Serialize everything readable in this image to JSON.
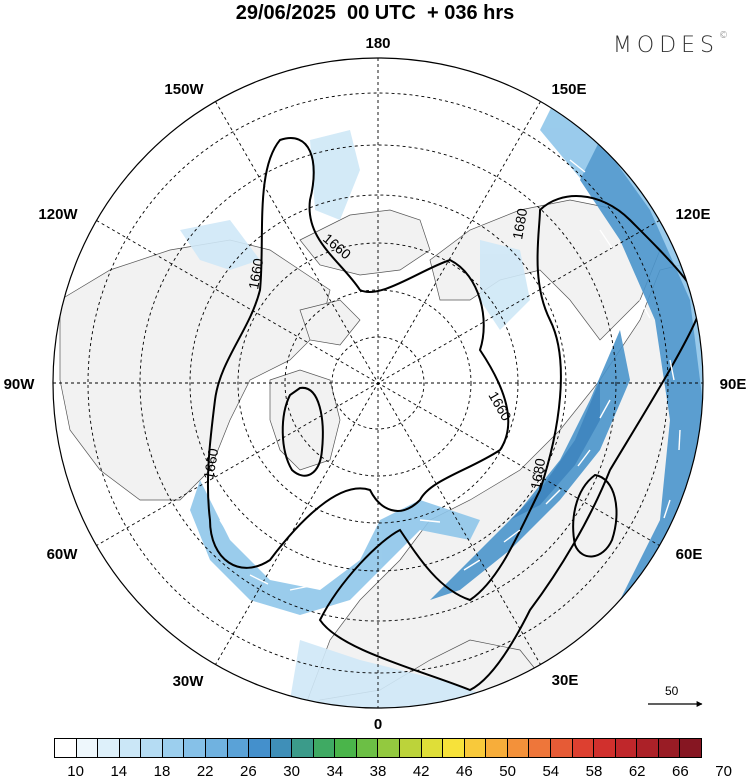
{
  "header": {
    "title": "29/06/2025  00 UTC  + 036 hrs",
    "brand": "MODES",
    "brand_mark": "©"
  },
  "map": {
    "projection": "north-polar-stereographic",
    "longitude_labels": [
      "180",
      "150E",
      "120E",
      "90E",
      "60E",
      "30E",
      "0",
      "30W",
      "60W",
      "90W",
      "120W",
      "150W"
    ],
    "contour_labels": [
      "1660",
      "1660",
      "1680",
      "1660",
      "1680",
      "1660"
    ],
    "colors": {
      "land_fill": "#f2f2f2",
      "coast": "#555555",
      "contour": "#000000",
      "wind_light": "#cfe8f7",
      "wind_mid": "#8fc6ea",
      "wind_strong": "#4b95cc",
      "wind_max": "#2e7cbb",
      "arrows": "#ffffff"
    }
  },
  "reference_vector": {
    "label": "50"
  },
  "colorbar": {
    "colors": [
      "#ffffff",
      "#eef7fc",
      "#ddf0fa",
      "#cbe7f7",
      "#b5dcf3",
      "#9ccfee",
      "#86c1e8",
      "#70b2e0",
      "#5aa2d7",
      "#4490cc",
      "#3f8fb8",
      "#3b9b8a",
      "#3faa63",
      "#4ab54a",
      "#6cbf45",
      "#93c93f",
      "#bcd33a",
      "#dfde38",
      "#f7e23a",
      "#f8c93b",
      "#f7ad3a",
      "#f3913a",
      "#ee763a",
      "#e65b36",
      "#dd4030",
      "#d1302d",
      "#c0272b",
      "#ac2128",
      "#991c25",
      "#861622"
    ],
    "tick_labels": [
      "10",
      "14",
      "18",
      "22",
      "26",
      "30",
      "34",
      "38",
      "42",
      "46",
      "50",
      "54",
      "58",
      "62",
      "66",
      "70"
    ]
  }
}
